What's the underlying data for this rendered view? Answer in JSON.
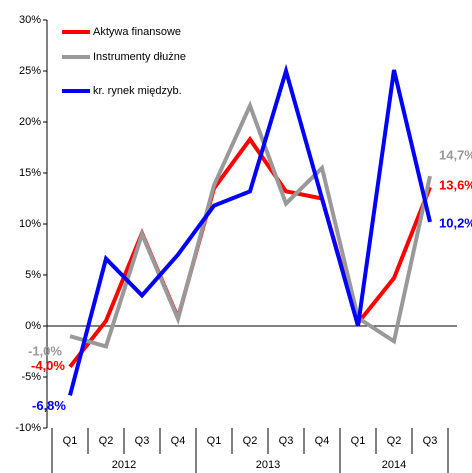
{
  "chart_data": {
    "type": "line",
    "categories": [
      "Q1",
      "Q2",
      "Q3",
      "Q4",
      "Q1",
      "Q2",
      "Q3",
      "Q4",
      "Q1",
      "Q2",
      "Q3"
    ],
    "category_groups": [
      {
        "label": "2012",
        "count": 4
      },
      {
        "label": "2013",
        "count": 4
      },
      {
        "label": "2014",
        "count": 3
      }
    ],
    "series": [
      {
        "name": "Aktywa finansowe",
        "color": "#ff0000",
        "values": [
          -4.0,
          0.5,
          9.1,
          0.8,
          13.5,
          18.3,
          13.2,
          12.5,
          0.3,
          4.7,
          13.6
        ],
        "value_labels": [
          "-4,0%",
          null,
          null,
          null,
          null,
          null,
          null,
          null,
          null,
          null,
          "13,6%"
        ]
      },
      {
        "name": "Instrumenty dłużne",
        "color": "#999999",
        "values": [
          -1.0,
          -2.0,
          9.0,
          0.7,
          13.8,
          21.6,
          12.0,
          15.5,
          0.8,
          -1.5,
          14.7
        ],
        "value_labels": [
          "-1,0%",
          null,
          null,
          null,
          null,
          null,
          null,
          null,
          null,
          null,
          "14,7%"
        ]
      },
      {
        "name": "kr. rynek międzyb.",
        "color": "#0000ff",
        "values": [
          -6.8,
          6.6,
          3.0,
          7.0,
          11.8,
          13.2,
          25.0,
          12.5,
          0.0,
          25.1,
          10.2
        ],
        "value_labels": [
          "-6,8%",
          null,
          null,
          null,
          null,
          null,
          null,
          null,
          null,
          null,
          "10,2%"
        ]
      }
    ],
    "ylim": [
      -10,
      30
    ],
    "yticks": [
      {
        "value": -10,
        "label": "-10%"
      },
      {
        "value": -5,
        "label": "-5%"
      },
      {
        "value": 0,
        "label": "0%"
      },
      {
        "value": 5,
        "label": "5%"
      },
      {
        "value": 10,
        "label": "10%"
      },
      {
        "value": 15,
        "label": "15%"
      },
      {
        "value": 20,
        "label": "20%"
      },
      {
        "value": 25,
        "label": "25%"
      },
      {
        "value": 30,
        "label": "30%"
      }
    ],
    "legend": "upper left",
    "grid": false
  }
}
